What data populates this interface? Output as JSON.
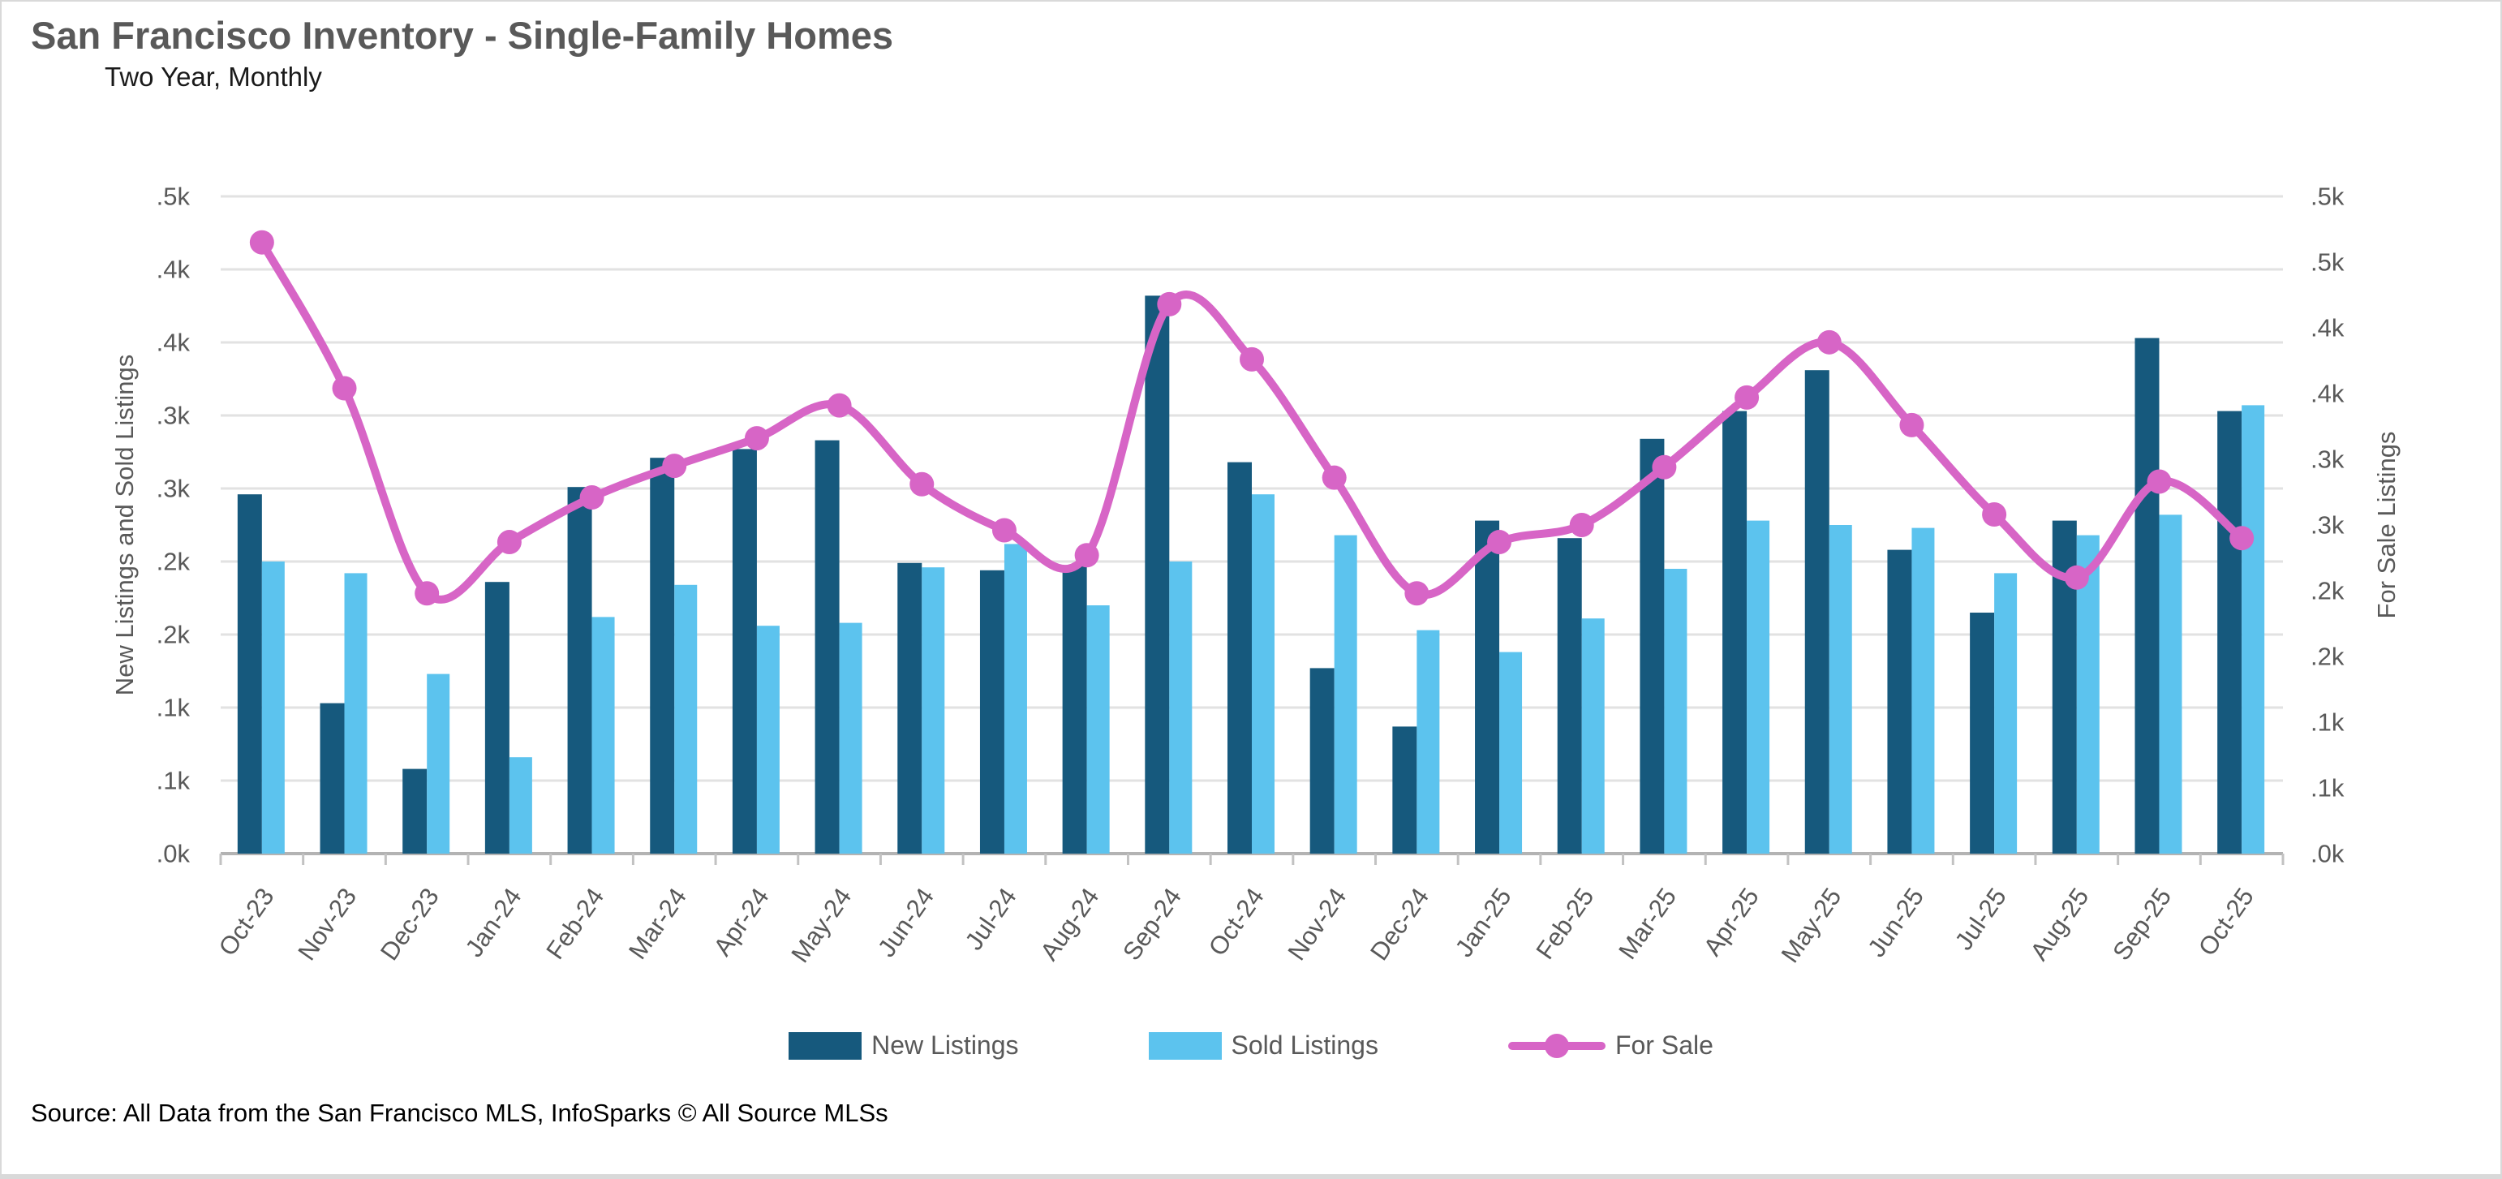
{
  "page": {
    "title": "San Francisco Inventory - Single-Family Homes",
    "subtitle": "Two Year, Monthly",
    "source": "Source: All Data from the San Francisco MLS, InfoSparks © All Source MLSs"
  },
  "chart_data": {
    "type": "bar",
    "title": "San Francisco Inventory - Single-Family Homes",
    "subtitle": "Two Year, Monthly",
    "grid": true,
    "legend_position": "bottom",
    "categories": [
      "Oct-23",
      "Nov-23",
      "Dec-23",
      "Jan-24",
      "Feb-24",
      "Mar-24",
      "Apr-24",
      "May-24",
      "Jun-24",
      "Jul-24",
      "Aug-24",
      "Sep-24",
      "Oct-24",
      "Nov-24",
      "Dec-24",
      "Jan-25",
      "Feb-25",
      "Mar-25",
      "Apr-25",
      "May-25",
      "Jun-25",
      "Jul-25",
      "Aug-25",
      "Sep-25",
      "Oct-25"
    ],
    "series": [
      {
        "name": "New Listings",
        "type": "bar",
        "axis": "left",
        "color": "#16597d",
        "values": [
          246,
          103,
          58,
          186,
          251,
          271,
          277,
          283,
          199,
          194,
          197,
          382,
          268,
          127,
          87,
          228,
          216,
          284,
          303,
          331,
          208,
          165,
          228,
          353,
          303
        ]
      },
      {
        "name": "Sold Listings",
        "type": "bar",
        "axis": "left",
        "color": "#5cc3ee",
        "values": [
          200,
          192,
          123,
          66,
          162,
          184,
          156,
          158,
          196,
          212,
          170,
          200,
          246,
          218,
          153,
          138,
          161,
          195,
          228,
          225,
          223,
          192,
          218,
          232,
          307
        ]
      },
      {
        "name": "For Sale",
        "type": "line",
        "axis": "right",
        "color": "#d765c6",
        "values": [
          465,
          354,
          198,
          237,
          271,
          295,
          316,
          341,
          281,
          246,
          227,
          418,
          376,
          286,
          198,
          237,
          250,
          294,
          347,
          389,
          326,
          258,
          210,
          283,
          240
        ]
      }
    ],
    "axes": {
      "left": {
        "label": "New Listings and Sold Listings",
        "range": [
          0,
          450
        ],
        "tick_labels": [
          ".5k",
          ".4k",
          ".4k",
          ".3k",
          ".3k",
          ".2k",
          ".2k",
          ".1k",
          ".1k",
          ".0k"
        ]
      },
      "right": {
        "label": "For Sale Listings",
        "range": [
          0,
          500
        ],
        "tick_labels": [
          ".5k",
          ".5k",
          ".4k",
          ".4k",
          ".3k",
          ".3k",
          ".2k",
          ".2k",
          ".1k",
          ".1k",
          ".0k"
        ]
      }
    },
    "colors": {
      "gridline": "#e2e2e2",
      "axis_line": "#b3b3b3",
      "tick": "#c2c2c2",
      "tick_text": "#595959"
    }
  }
}
